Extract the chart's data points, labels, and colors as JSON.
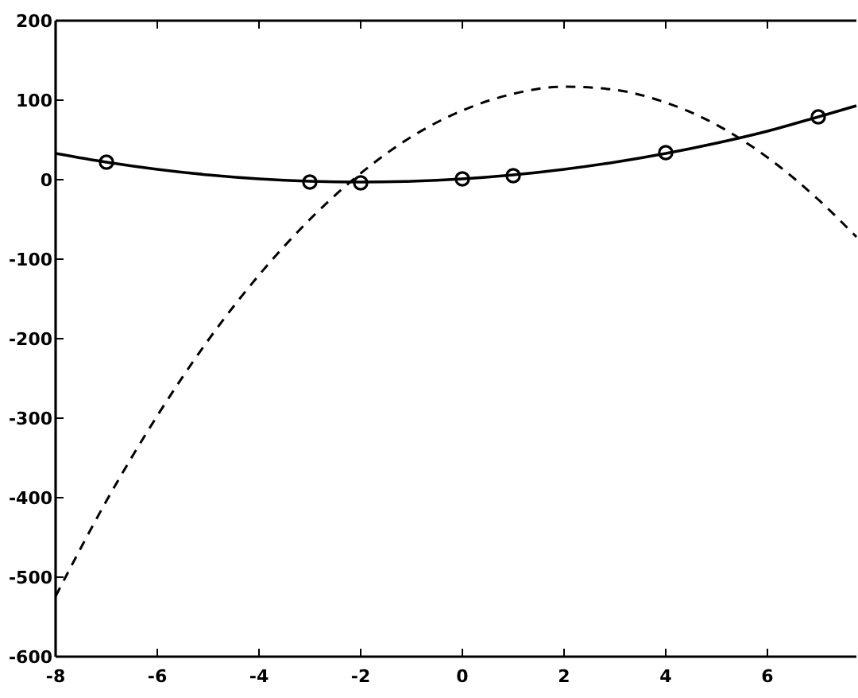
{
  "chart_data": {
    "type": "line",
    "xlim": [
      -8,
      7.75
    ],
    "xticks": [
      -8,
      -6,
      -4,
      -2,
      0,
      2,
      4,
      6
    ],
    "ylim": [
      -600,
      200
    ],
    "yticks": [
      -600,
      -500,
      -400,
      -300,
      -200,
      -100,
      0,
      100,
      200
    ],
    "grid": false,
    "series": [
      {
        "color": "#000000",
        "line_style": "solid",
        "marker": "none",
        "x": [
          -8,
          -7,
          -6,
          -5,
          -4,
          -3,
          -2,
          -1,
          0,
          1,
          2,
          3,
          4,
          5,
          6,
          7,
          7.75
        ],
        "values": [
          33,
          22,
          13,
          6,
          1,
          -2,
          -3,
          -2,
          1,
          6,
          13,
          22,
          33,
          46,
          61,
          79,
          93
        ]
      },
      {
        "color": "#000000",
        "line_style": "dashed",
        "marker": "none",
        "x": [
          -8,
          -7,
          -6,
          -5,
          -4,
          -3,
          -2,
          -1,
          0,
          1,
          2,
          3,
          4,
          5,
          6,
          7,
          7.75
        ],
        "values": [
          -524,
          -404,
          -297,
          -202,
          -120,
          -50,
          8,
          54,
          87,
          108,
          117,
          113,
          97,
          69,
          28,
          -25,
          -72
        ]
      },
      {
        "type": "scatter",
        "color": "#000000",
        "marker": "circle",
        "x": [
          -7,
          -3,
          -2,
          0,
          1,
          4,
          7
        ],
        "values": [
          22,
          -3,
          -4,
          1,
          5,
          34,
          79
        ]
      }
    ]
  }
}
